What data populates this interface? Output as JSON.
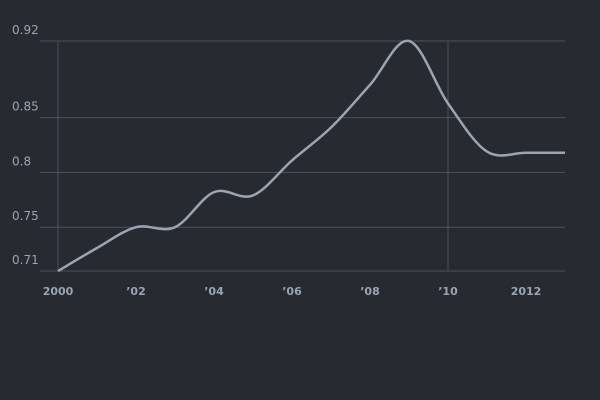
{
  "chart_data": {
    "type": "line",
    "x": [
      2000,
      2001,
      2002,
      2003,
      2004,
      2005,
      2006,
      2007,
      2008,
      2009,
      2010,
      2011,
      2012,
      2013
    ],
    "series": [
      {
        "color": "#9aa5b4",
        "values": [
          0.71,
          0.731,
          0.75,
          0.75,
          0.782,
          0.779,
          0.811,
          0.841,
          0.88,
          0.92,
          0.863,
          0.819,
          0.818,
          0.818
        ]
      }
    ],
    "xlim": [
      2000,
      2013
    ],
    "xticks": [
      2000,
      {
        "value": 2002,
        "label": "’02"
      },
      {
        "value": 2004,
        "label": "’04"
      },
      {
        "value": 2006,
        "label": "’06"
      },
      {
        "value": 2008,
        "label": "’08"
      },
      {
        "value": 2010,
        "label": "’10"
      },
      2012
    ],
    "ylim": [
      0.71,
      0.92
    ],
    "yticks": [
      0.71,
      0.75,
      0.8,
      0.85,
      0.92
    ],
    "xgrid": [
      2000,
      2010
    ],
    "grid": true
  }
}
